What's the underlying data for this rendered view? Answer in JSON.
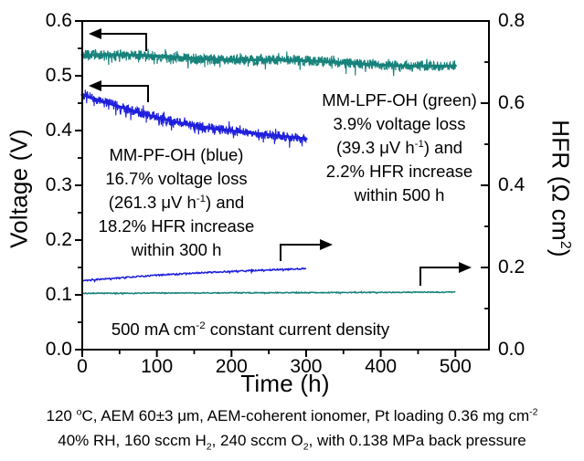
{
  "chart_data": {
    "type": "line",
    "title": "",
    "xlabel": "Time (h)",
    "ylabel_left": "Voltage (V)",
    "ylabel_right": "HFR (Ω cm²)",
    "ylabel_right_parts": [
      {
        "t": "text",
        "v": "HFR (Ω cm"
      },
      {
        "t": "sup",
        "v": "2"
      },
      {
        "t": "text",
        "v": ")"
      }
    ],
    "xlim": [
      0,
      545
    ],
    "ylim_left": [
      0,
      0.6
    ],
    "ylim_right": [
      0,
      0.8
    ],
    "grid": false,
    "x_ticks": {
      "labels": [
        "0",
        "100",
        "200",
        "300",
        "400",
        "500"
      ],
      "values": [
        0,
        100,
        200,
        300,
        400,
        500
      ],
      "minor": [
        50,
        150,
        250,
        350,
        450
      ]
    },
    "y_left_ticks": {
      "labels": [
        "0.0",
        "0.1",
        "0.2",
        "0.3",
        "0.4",
        "0.5",
        "0.6"
      ],
      "values": [
        0,
        0.1,
        0.2,
        0.3,
        0.4,
        0.5,
        0.6
      ],
      "minor": [
        0.05,
        0.15,
        0.25,
        0.35,
        0.45,
        0.55
      ]
    },
    "y_right_ticks": {
      "labels": [
        "0.0",
        "0.2",
        "0.4",
        "0.6",
        "0.8"
      ],
      "values": [
        0,
        0.2,
        0.4,
        0.6,
        0.8
      ],
      "minor": [
        0.1,
        0.3,
        0.5,
        0.7
      ]
    },
    "series": [
      {
        "name": "MM-LPF-OH voltage",
        "color": "#17827b",
        "axis": "left",
        "unit": "V",
        "x_start": 0,
        "x_end": 500,
        "y_start": 0.538,
        "y_end": 0.518,
        "shape": "linear",
        "noise_band": 0.009,
        "has_core_line": true,
        "summary": "3.9% voltage loss (39.3 μV h-1) within 500 h"
      },
      {
        "name": "MM-PF-OH voltage",
        "color": "#1f1fdd",
        "axis": "left",
        "unit": "V",
        "x_start": 0,
        "x_end": 300,
        "y_start": 0.463,
        "y_end": 0.385,
        "shape": "decay",
        "tau": 220,
        "noise_band": 0.009,
        "has_core_line": true,
        "summary": "16.7% voltage loss (261.3 μV h-1) within 300 h"
      },
      {
        "name": "MM-PF-OH HFR",
        "color": "#1f1fdd",
        "axis": "right",
        "unit": "Ω cm²",
        "x_start": 0,
        "x_end": 300,
        "y_start": 0.167,
        "y_end": 0.197,
        "shape": "saturate",
        "tau": 260,
        "noise_band": 0.0015,
        "has_core_line": false,
        "summary": "18.2% HFR increase within 300 h"
      },
      {
        "name": "MM-LPF-OH HFR",
        "color": "#17827b",
        "axis": "right",
        "unit": "Ω cm²",
        "x_start": 0,
        "x_end": 500,
        "y_start": 0.137,
        "y_end": 0.14,
        "shape": "linear",
        "noise_band": 0.001,
        "has_core_line": false,
        "summary": "2.2% HFR increase within 500 h"
      }
    ],
    "annotations": {
      "blue_block_lines": [
        [
          {
            "t": "text",
            "v": "MM-PF-OH (blue)"
          }
        ],
        [
          {
            "t": "text",
            "v": "16.7% voltage loss"
          }
        ],
        [
          {
            "t": "text",
            "v": "(261.3 μV h"
          },
          {
            "t": "sup",
            "v": "-1"
          },
          {
            "t": "text",
            "v": ") and"
          }
        ],
        [
          {
            "t": "text",
            "v": "18.2% HFR increase"
          }
        ],
        [
          {
            "t": "text",
            "v": "within 300 h"
          }
        ]
      ],
      "green_block_lines": [
        [
          {
            "t": "text",
            "v": "MM-LPF-OH (green)"
          }
        ],
        [
          {
            "t": "text",
            "v": "3.9% voltage loss"
          }
        ],
        [
          {
            "t": "text",
            "v": "(39.3 μV h"
          },
          {
            "t": "sup",
            "v": "-1"
          },
          {
            "t": "text",
            "v": ") and"
          }
        ],
        [
          {
            "t": "text",
            "v": "2.2% HFR increase"
          }
        ],
        [
          {
            "t": "text",
            "v": "within 500 h"
          }
        ]
      ],
      "note_parts": [
        {
          "t": "text",
          "v": "500 mA cm"
        },
        {
          "t": "sup",
          "v": "-2"
        },
        {
          "t": "text",
          "v": " constant current density"
        }
      ]
    }
  },
  "figure": {
    "caption_line1_parts": [
      {
        "t": "text",
        "v": "120 "
      },
      {
        "t": "sup",
        "v": "o"
      },
      {
        "t": "text",
        "v": "C, AEM 60±3 μm, AEM-coherent ionomer, Pt loading 0.36 mg cm"
      },
      {
        "t": "sup",
        "v": "-2"
      }
    ],
    "caption_line2_parts": [
      {
        "t": "text",
        "v": "40% RH, 160 sccm H"
      },
      {
        "t": "sub",
        "v": "2"
      },
      {
        "t": "text",
        "v": ", 240 sccm O"
      },
      {
        "t": "sub",
        "v": "2"
      },
      {
        "t": "text",
        "v": ", with 0.138 MPa back pressure"
      }
    ]
  }
}
